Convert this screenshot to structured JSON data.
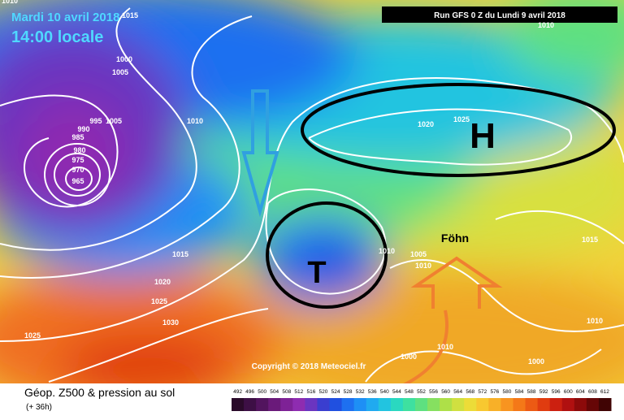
{
  "header": {
    "date": "Mardi 10 avril 2018",
    "time": "14:00 locale",
    "run": "Run GFS 0 Z du Lundi 9 avril 2018"
  },
  "map": {
    "high_label": "H",
    "low_label": "T",
    "foehn_label": "Föhn",
    "copyright": "Copyright © 2018 Meteociel.fr",
    "isobar_labels": [
      1015,
      1000,
      1005,
      1005,
      990,
      995,
      985,
      980,
      975,
      970,
      965,
      1010,
      1020,
      1025,
      1015,
      1020,
      1025,
      1030,
      1025,
      1010,
      1005,
      1010,
      1000,
      1010,
      1000,
      1015,
      1010,
      1010,
      1010
    ]
  },
  "legend": {
    "title": "Géop. Z500 & pression au sol",
    "lead": "(+ 36h)",
    "levels": [
      492,
      496,
      500,
      504,
      508,
      512,
      516,
      520,
      524,
      528,
      532,
      536,
      540,
      544,
      548,
      552,
      556,
      560,
      564,
      568,
      572,
      576,
      580,
      584,
      588,
      592,
      596,
      600,
      604,
      608,
      612
    ],
    "colors": [
      "#2a0a2a",
      "#3d0f45",
      "#52145e",
      "#6a1a7a",
      "#7e2296",
      "#8e2cb0",
      "#6a35c0",
      "#3a3ecf",
      "#2050e0",
      "#1e70f0",
      "#1e8ff5",
      "#20aaf0",
      "#22c4e0",
      "#2ad8c0",
      "#3ee0a0",
      "#5ee080",
      "#86e060",
      "#aee048",
      "#d0e040",
      "#ecdc38",
      "#f8c830",
      "#f8b028",
      "#f89420",
      "#f47818",
      "#ec5a14",
      "#e03c10",
      "#cc2010",
      "#b01010",
      "#8c0a0a",
      "#660606",
      "#400404"
    ]
  }
}
